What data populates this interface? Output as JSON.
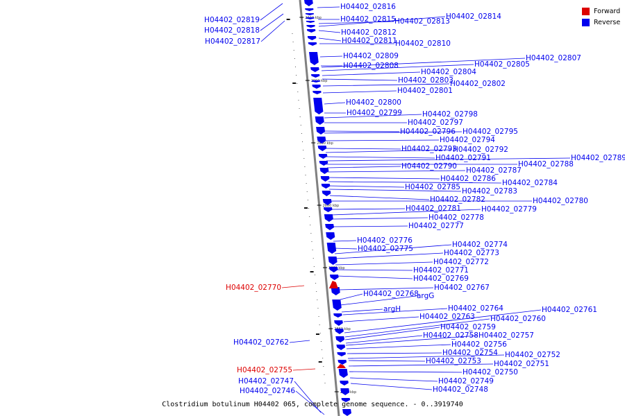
{
  "caption": "Clostridium botulinum H04402 065, complete genome sequence. - 0..3919740",
  "colors": {
    "forward": "#dd0000",
    "reverse": "#0000ee",
    "backbone": "#808080"
  },
  "legend": [
    {
      "label": "Forward",
      "color": "#dd0000"
    },
    {
      "label": "Reverse",
      "color": "#0000ee"
    }
  ],
  "scale_ticks": [
    "2910 kbp",
    "2900 kbp",
    "2890 kbp",
    "2880 kbp",
    "2870 kbp",
    "2860 kbp",
    "2850 kbp"
  ],
  "features": [
    {
      "label": "H04402_02816",
      "strand": "reverse"
    },
    {
      "label": "H04402_02819",
      "strand": "reverse"
    },
    {
      "label": "H04402_02815",
      "strand": "reverse"
    },
    {
      "label": "H04402_02813",
      "strand": "reverse"
    },
    {
      "label": "H04402_02814",
      "strand": "reverse"
    },
    {
      "label": "H04402_02818",
      "strand": "reverse"
    },
    {
      "label": "H04402_02812",
      "strand": "reverse"
    },
    {
      "label": "H04402_02817",
      "strand": "reverse"
    },
    {
      "label": "H04402_02811",
      "strand": "reverse"
    },
    {
      "label": "H04402_02810",
      "strand": "reverse"
    },
    {
      "label": "H04402_02809",
      "strand": "reverse"
    },
    {
      "label": "H04402_02807",
      "strand": "reverse"
    },
    {
      "label": "H04402_02808",
      "strand": "reverse"
    },
    {
      "label": "H04402_02805",
      "strand": "reverse"
    },
    {
      "label": "H04402_02804",
      "strand": "reverse"
    },
    {
      "label": "H04402_02803",
      "strand": "reverse"
    },
    {
      "label": "H04402_02802",
      "strand": "reverse"
    },
    {
      "label": "H04402_02801",
      "strand": "reverse"
    },
    {
      "label": "H04402_02800",
      "strand": "reverse"
    },
    {
      "label": "H04402_02799",
      "strand": "reverse"
    },
    {
      "label": "H04402_02798",
      "strand": "reverse"
    },
    {
      "label": "H04402_02797",
      "strand": "reverse"
    },
    {
      "label": "H04402_02796",
      "strand": "reverse"
    },
    {
      "label": "H04402_02795",
      "strand": "reverse"
    },
    {
      "label": "H04402_02794",
      "strand": "reverse"
    },
    {
      "label": "H04402_02793",
      "strand": "reverse"
    },
    {
      "label": "H04402_02792",
      "strand": "reverse"
    },
    {
      "label": "H04402_02791",
      "strand": "reverse"
    },
    {
      "label": "H04402_02789",
      "strand": "reverse"
    },
    {
      "label": "H04402_02788",
      "strand": "reverse"
    },
    {
      "label": "H04402_02790",
      "strand": "reverse"
    },
    {
      "label": "H04402_02787",
      "strand": "reverse"
    },
    {
      "label": "H04402_02786",
      "strand": "reverse"
    },
    {
      "label": "H04402_02784",
      "strand": "reverse"
    },
    {
      "label": "H04402_02785",
      "strand": "reverse"
    },
    {
      "label": "H04402_02783",
      "strand": "reverse"
    },
    {
      "label": "H04402_02782",
      "strand": "reverse"
    },
    {
      "label": "H04402_02780",
      "strand": "reverse"
    },
    {
      "label": "H04402_02781",
      "strand": "reverse"
    },
    {
      "label": "H04402_02779",
      "strand": "reverse"
    },
    {
      "label": "H04402_02778",
      "strand": "reverse"
    },
    {
      "label": "H04402_02777",
      "strand": "reverse"
    },
    {
      "label": "H04402_02776",
      "strand": "reverse"
    },
    {
      "label": "H04402_02775",
      "strand": "reverse"
    },
    {
      "label": "H04402_02774",
      "strand": "reverse"
    },
    {
      "label": "H04402_02773",
      "strand": "reverse"
    },
    {
      "label": "H04402_02772",
      "strand": "reverse"
    },
    {
      "label": "H04402_02771",
      "strand": "reverse"
    },
    {
      "label": "H04402_02769",
      "strand": "reverse"
    },
    {
      "label": "H04402_02770",
      "strand": "forward"
    },
    {
      "label": "H04402_02767",
      "strand": "reverse"
    },
    {
      "label": "H04402_02768",
      "strand": "reverse"
    },
    {
      "label": "argG",
      "strand": "reverse"
    },
    {
      "label": "argH",
      "strand": "reverse"
    },
    {
      "label": "H04402_02764",
      "strand": "reverse"
    },
    {
      "label": "H04402_02761",
      "strand": "reverse"
    },
    {
      "label": "H04402_02763",
      "strand": "reverse"
    },
    {
      "label": "H04402_02760",
      "strand": "reverse"
    },
    {
      "label": "H04402_02759",
      "strand": "reverse"
    },
    {
      "label": "H04402_02758",
      "strand": "reverse"
    },
    {
      "label": "H04402_02757",
      "strand": "reverse"
    },
    {
      "label": "H04402_02762",
      "strand": "reverse"
    },
    {
      "label": "H04402_02756",
      "strand": "reverse"
    },
    {
      "label": "H04402_02754",
      "strand": "reverse"
    },
    {
      "label": "H04402_02752",
      "strand": "reverse"
    },
    {
      "label": "H04402_02753",
      "strand": "reverse"
    },
    {
      "label": "H04402_02751",
      "strand": "reverse"
    },
    {
      "label": "H04402_02755",
      "strand": "forward"
    },
    {
      "label": "H04402_02750",
      "strand": "reverse"
    },
    {
      "label": "H04402_02747",
      "strand": "reverse"
    },
    {
      "label": "H04402_02749",
      "strand": "reverse"
    },
    {
      "label": "H04402_02746",
      "strand": "reverse"
    },
    {
      "label": "H04402_02748",
      "strand": "reverse"
    }
  ]
}
